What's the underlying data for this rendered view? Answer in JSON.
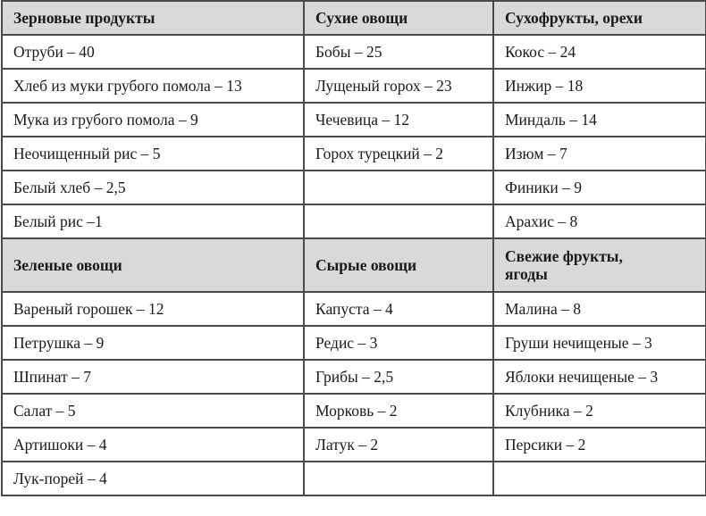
{
  "sections": [
    {
      "headers": [
        "Зерновые продукты",
        "Сухие овощи",
        "Сухофрукты, орехи"
      ],
      "rows": [
        [
          "Отруби – 40",
          "Бобы – 25",
          "Кокос – 24"
        ],
        [
          "Хлеб из муки грубого помола – 13",
          "Лущеный горох – 23",
          "Инжир – 18"
        ],
        [
          "Мука из грубого помола – 9",
          "Чечевица – 12",
          "Миндаль – 14"
        ],
        [
          "Неочищенный рис – 5",
          "Горох турецкий – 2",
          "Изюм – 7"
        ],
        [
          "Белый хлеб – 2,5",
          "",
          "Финики – 9"
        ],
        [
          "Белый рис –1",
          "",
          "Арахис – 8"
        ]
      ]
    },
    {
      "headers": [
        "Зеленые овощи",
        "Сырые овощи",
        "Свежие фрукты, ягоды"
      ],
      "rows": [
        [
          "Вареный горошек – 12",
          "Капуста – 4",
          "Малина – 8"
        ],
        [
          "Петрушка – 9",
          "Редис – 3",
          "Груши нечищеные – 3"
        ],
        [
          "Шпинат – 7",
          "Грибы – 2,5",
          "Яблоки нечищеные – 3"
        ],
        [
          "Салат – 5",
          "Морковь – 2",
          "Клубника – 2"
        ],
        [
          "Артишоки – 4",
          "Латук – 2",
          "Персики – 2"
        ],
        [
          "Лук-порей – 4",
          "",
          ""
        ]
      ]
    }
  ]
}
